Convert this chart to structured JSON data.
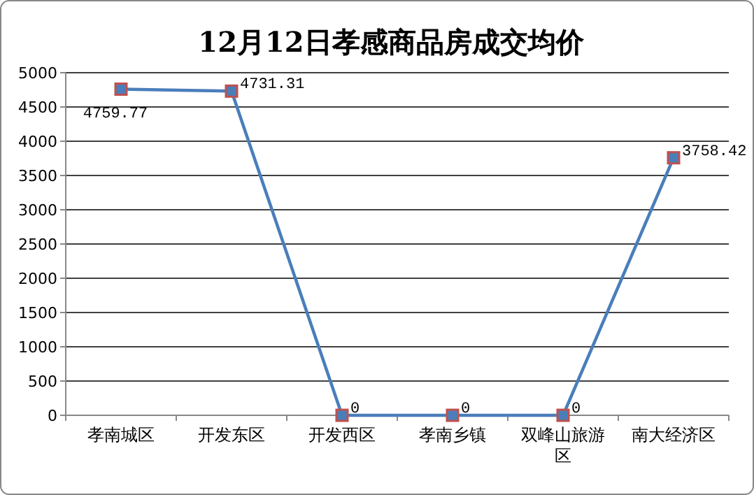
{
  "chart_data": {
    "type": "line",
    "title": "12月12日孝感商品房成交均价",
    "categories": [
      "孝南城区",
      "开发东区",
      "开发西区",
      "孝南乡镇",
      "双峰山旅游区",
      "南大经济区"
    ],
    "series": [
      {
        "color": "#4a7ebb",
        "values": [
          4759.77,
          4731.31,
          0,
          0,
          0,
          3758.42
        ]
      }
    ],
    "ylim": [
      0,
      5000
    ],
    "yticks": [
      0,
      500,
      1000,
      1500,
      2000,
      2500,
      3000,
      3500,
      4000,
      4500,
      5000
    ],
    "grid": "y",
    "marker": "square",
    "line_style": "solid",
    "data_labels": true
  }
}
